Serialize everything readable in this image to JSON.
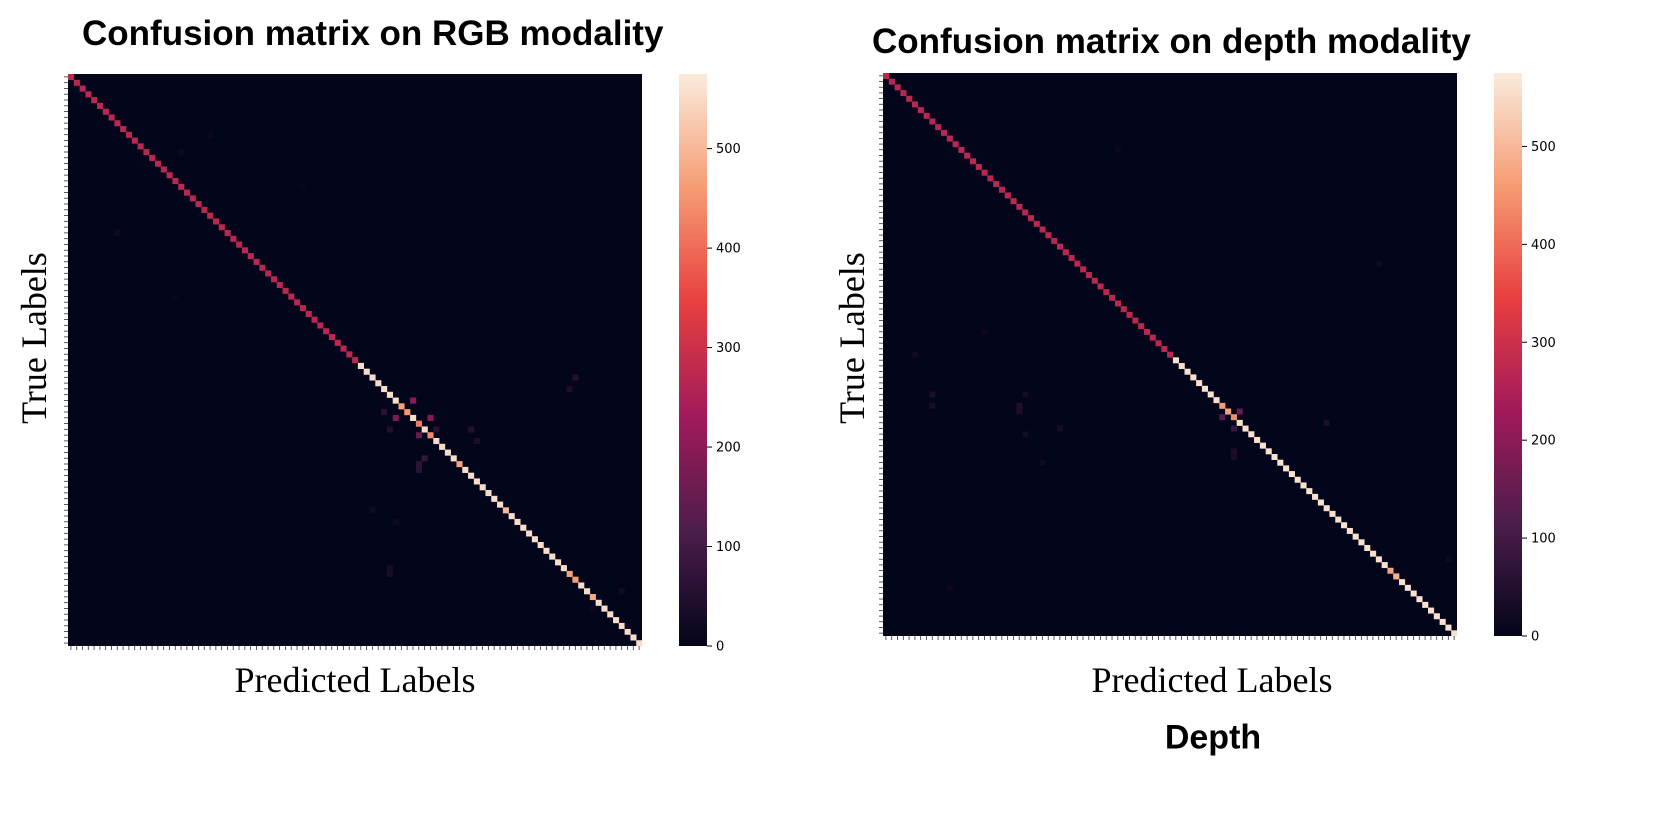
{
  "colors": {
    "background": "#03051a",
    "colormap": [
      "#03051a",
      "#4c1d4b",
      "#a11a5b",
      "#e83f3f",
      "#f69c73",
      "#faebdd"
    ]
  },
  "caption": "Depth",
  "chart_data": [
    {
      "type": "heatmap",
      "title": "Confusion matrix on RGB modality",
      "xlabel": "Predicted Labels",
      "ylabel": "True Labels",
      "n_classes": 99,
      "vmin": 0,
      "vmax": 575,
      "colorbar_ticks": [
        "0",
        "100",
        "200",
        "300",
        "400",
        "500"
      ],
      "diagonal_segments": [
        {
          "from": 0,
          "to": 49,
          "value": 270
        },
        {
          "from": 50,
          "to": 98,
          "value": 555
        }
      ],
      "diagonal_overrides": [
        {
          "i": 57,
          "value": 470
        },
        {
          "i": 58,
          "value": 455
        },
        {
          "i": 60,
          "value": 420
        },
        {
          "i": 62,
          "value": 440
        },
        {
          "i": 67,
          "value": 470
        },
        {
          "i": 75,
          "value": 500
        },
        {
          "i": 86,
          "value": 470
        },
        {
          "i": 87,
          "value": 460
        },
        {
          "i": 90,
          "value": 480
        }
      ],
      "off_diagonal": [
        {
          "i": 56,
          "j": 59,
          "value": 200
        },
        {
          "i": 59,
          "j": 56,
          "value": 180
        },
        {
          "i": 59,
          "j": 62,
          "value": 190
        },
        {
          "i": 62,
          "j": 60,
          "value": 150
        },
        {
          "i": 58,
          "j": 54,
          "value": 60
        },
        {
          "i": 61,
          "j": 55,
          "value": 50
        },
        {
          "i": 61,
          "j": 63,
          "value": 60
        },
        {
          "i": 66,
          "j": 61,
          "value": 80
        },
        {
          "i": 67,
          "j": 60,
          "value": 70
        },
        {
          "i": 68,
          "j": 60,
          "value": 60
        },
        {
          "i": 61,
          "j": 69,
          "value": 50
        },
        {
          "i": 63,
          "j": 70,
          "value": 40
        },
        {
          "i": 54,
          "j": 86,
          "value": 40
        },
        {
          "i": 52,
          "j": 87,
          "value": 50
        },
        {
          "i": 85,
          "j": 55,
          "value": 30
        },
        {
          "i": 86,
          "j": 55,
          "value": 35
        },
        {
          "i": 27,
          "j": 8,
          "value": 20
        },
        {
          "i": 10,
          "j": 24,
          "value": 15
        },
        {
          "i": 13,
          "j": 19,
          "value": 15
        },
        {
          "i": 38,
          "j": 18,
          "value": 10
        },
        {
          "i": 19,
          "j": 40,
          "value": 10
        },
        {
          "i": 75,
          "j": 52,
          "value": 20
        },
        {
          "i": 77,
          "j": 56,
          "value": 15
        },
        {
          "i": 89,
          "j": 95,
          "value": 25
        },
        {
          "i": 92,
          "j": 90,
          "value": 15
        },
        {
          "i": 95,
          "j": 96,
          "value": 20
        }
      ]
    },
    {
      "type": "heatmap",
      "title": "Confusion matrix on depth modality",
      "xlabel": "Predicted Labels",
      "ylabel": "True Labels",
      "n_classes": 99,
      "vmin": 0,
      "vmax": 575,
      "colorbar_ticks": [
        "0",
        "100",
        "200",
        "300",
        "400",
        "500"
      ],
      "diagonal_segments": [
        {
          "from": 0,
          "to": 49,
          "value": 270
        },
        {
          "from": 50,
          "to": 98,
          "value": 560
        }
      ],
      "diagonal_overrides": [
        {
          "i": 58,
          "value": 460
        },
        {
          "i": 59,
          "value": 470
        },
        {
          "i": 60,
          "value": 440
        },
        {
          "i": 87,
          "value": 470
        },
        {
          "i": 88,
          "value": 490
        }
      ],
      "off_diagonal": [
        {
          "i": 59,
          "j": 61,
          "value": 150
        },
        {
          "i": 60,
          "j": 58,
          "value": 120
        },
        {
          "i": 62,
          "j": 60,
          "value": 80
        },
        {
          "i": 58,
          "j": 23,
          "value": 45
        },
        {
          "i": 59,
          "j": 23,
          "value": 40
        },
        {
          "i": 56,
          "j": 8,
          "value": 40
        },
        {
          "i": 58,
          "j": 8,
          "value": 35
        },
        {
          "i": 62,
          "j": 30,
          "value": 30
        },
        {
          "i": 56,
          "j": 24,
          "value": 30
        },
        {
          "i": 63,
          "j": 24,
          "value": 25
        },
        {
          "i": 61,
          "j": 76,
          "value": 40
        },
        {
          "i": 66,
          "j": 60,
          "value": 40
        },
        {
          "i": 67,
          "j": 60,
          "value": 35
        },
        {
          "i": 68,
          "j": 27,
          "value": 20
        },
        {
          "i": 49,
          "j": 5,
          "value": 20
        },
        {
          "i": 45,
          "j": 17,
          "value": 15
        },
        {
          "i": 13,
          "j": 40,
          "value": 15
        },
        {
          "i": 33,
          "j": 85,
          "value": 20
        },
        {
          "i": 90,
          "j": 11,
          "value": 15
        },
        {
          "i": 85,
          "j": 97,
          "value": 20
        }
      ]
    }
  ]
}
